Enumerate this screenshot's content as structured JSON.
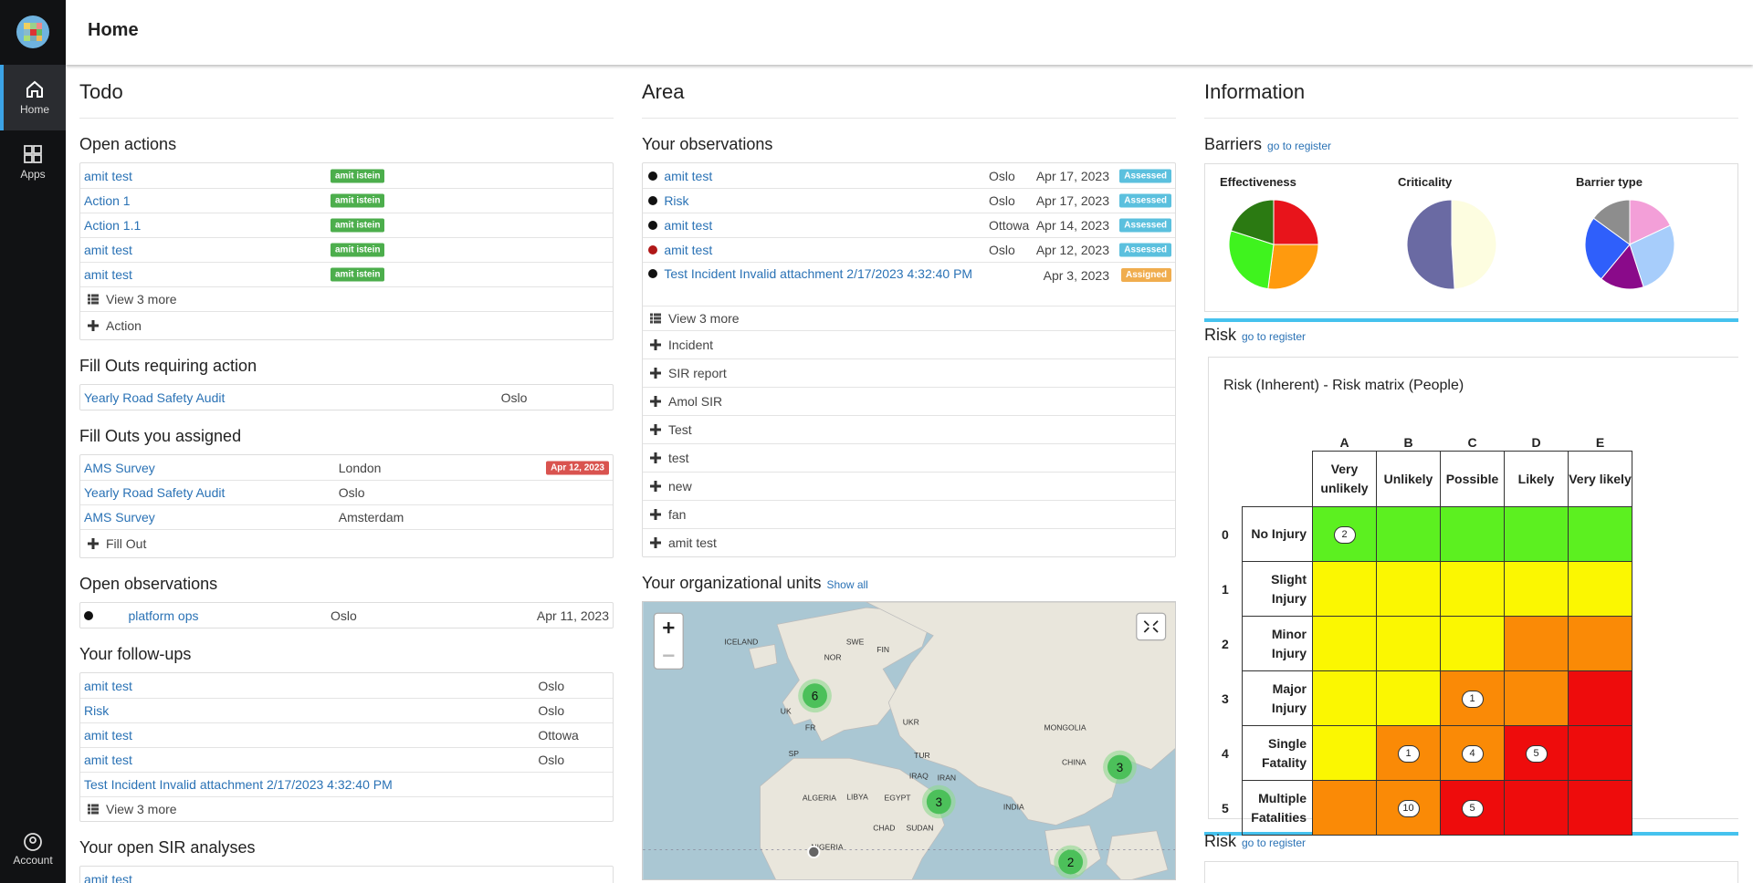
{
  "header": {
    "title": "Home"
  },
  "sidebar": {
    "items": [
      "Home",
      "Apps"
    ],
    "active": 0,
    "account": "Account"
  },
  "todo": {
    "title": "Todo",
    "open_actions": {
      "title": "Open actions",
      "rows": [
        [
          "amit test",
          "amit istein"
        ],
        [
          "Action 1",
          "amit istein"
        ],
        [
          "Action 1.1",
          "amit istein"
        ],
        [
          "amit test",
          "amit istein"
        ],
        [
          "amit test",
          "amit istein"
        ]
      ],
      "more": "View 3 more",
      "add": "Action"
    },
    "fill_outs_action": {
      "title": "Fill Outs requiring action",
      "rows": [
        [
          "Yearly Road Safety Audit",
          "Oslo"
        ]
      ]
    },
    "fill_outs_assigned": {
      "title": "Fill Outs you assigned",
      "rows": [
        [
          "AMS Survey",
          "London",
          "Apr 12, 2023"
        ],
        [
          "Yearly Road Safety Audit",
          "Oslo"
        ],
        [
          "AMS Survey",
          "Amsterdam"
        ]
      ],
      "add": "Fill Out"
    },
    "open_observations": {
      "title": "Open observations",
      "rows": [
        [
          "platform ops",
          "Oslo",
          "Apr 11, 2023"
        ]
      ]
    },
    "follow_ups": {
      "title": "Your follow-ups",
      "rows": [
        [
          "amit test",
          "Oslo"
        ],
        [
          "Risk",
          "Oslo"
        ],
        [
          "amit test",
          "Ottowa"
        ],
        [
          "amit test",
          "Oslo"
        ],
        [
          "Test Incident Invalid attachment 2/17/2023 4:32:40 PM"
        ]
      ],
      "more": "View 3 more"
    },
    "sir": {
      "title": "Your open SIR analyses",
      "rows": [
        [
          "amit test"
        ]
      ]
    }
  },
  "area": {
    "title": "Area",
    "observations": {
      "title": "Your observations",
      "rows": [
        {
          "name": "amit test",
          "place": "Oslo",
          "date": "Apr 17, 2023",
          "status": "Assessed",
          "dot": "#111111"
        },
        {
          "name": "Risk",
          "place": "Oslo",
          "date": "Apr 17, 2023",
          "status": "Assessed",
          "dot": "#111111"
        },
        {
          "name": "amit test",
          "place": "Ottowa",
          "date": "Apr 14, 2023",
          "status": "Assessed",
          "dot": "#111111"
        },
        {
          "name": "amit test",
          "place": "Oslo",
          "date": "Apr 12, 2023",
          "status": "Assessed",
          "dot": "#b01818"
        },
        {
          "name": "Test Incident Invalid attachment 2/17/2023 4:32:40 PM",
          "date": "Apr 3, 2023",
          "status": "Assigned",
          "dot": "#111111"
        }
      ],
      "more": "View 3 more",
      "add": [
        "Incident",
        "SIR report",
        "Amol SIR",
        "Test",
        "test",
        "new",
        "fan",
        "amit test"
      ]
    },
    "org_units": {
      "title": "Your organizational units",
      "link": "Show all",
      "clusters": [
        6,
        3,
        3,
        2
      ],
      "labels": [
        "ICELAND",
        "SWE",
        "NOR",
        "FIN",
        "UK",
        "FR",
        "SP",
        "UKR",
        "TUR",
        "IRAQ",
        "IRAN",
        "ALGERIA",
        "LIBYA",
        "EGYPT",
        "CHAD",
        "SUDAN",
        "NIGERIA",
        "INDIA",
        "CHINA",
        "MONGOLIA"
      ]
    }
  },
  "information": {
    "title": "Information",
    "barriers": {
      "title": "Barriers",
      "link": "go to register",
      "charts": [
        {
          "type": "pie",
          "title": "Effectiveness",
          "values": [
            25,
            27,
            28,
            20
          ],
          "colors": [
            "#e8141b",
            "#ff9a0e",
            "#3ff31e",
            "#2b7a12"
          ]
        },
        {
          "type": "pie",
          "title": "Criticality",
          "values": [
            49,
            51
          ],
          "colors": [
            "#fdfde0",
            "#6a6aa3"
          ]
        },
        {
          "type": "pie",
          "title": "Barrier type",
          "values": [
            18,
            27,
            16,
            24,
            15
          ],
          "colors": [
            "#f39fd8",
            "#a7cdfb",
            "#8a0a8a",
            "#2f5ffb",
            "#8d8d8d"
          ]
        }
      ]
    },
    "risk": {
      "title": "Risk",
      "link": "go to register",
      "matrix_title": "Risk (Inherent) - Risk matrix (People)",
      "columns": [
        {
          "letter": "A",
          "label": "Very unlikely"
        },
        {
          "letter": "B",
          "label": "Unlikely"
        },
        {
          "letter": "C",
          "label": "Possible"
        },
        {
          "letter": "D",
          "label": "Likely"
        },
        {
          "letter": "E",
          "label": "Very likely"
        }
      ],
      "rows": [
        {
          "index": 0,
          "label": "No Injury",
          "colors": [
            "#5cf020",
            "#5cf020",
            "#5cf020",
            "#5cf020",
            "#5cf020"
          ],
          "counts": [
            2,
            null,
            null,
            null,
            null
          ]
        },
        {
          "index": 1,
          "label": "Slight Injury",
          "colors": [
            "#fbf701",
            "#fbf701",
            "#fbf701",
            "#fbf701",
            "#fbf701"
          ],
          "counts": [
            null,
            null,
            null,
            null,
            null
          ]
        },
        {
          "index": 2,
          "label": "Minor Injury",
          "colors": [
            "#fbf701",
            "#fbf701",
            "#fbf701",
            "#fa8a06",
            "#fa8a06"
          ],
          "counts": [
            null,
            null,
            null,
            null,
            null
          ]
        },
        {
          "index": 3,
          "label": "Major Injury",
          "colors": [
            "#fbf701",
            "#fbf701",
            "#fa8a06",
            "#fa8a06",
            "#ee0c0c"
          ],
          "counts": [
            null,
            null,
            1,
            null,
            null
          ]
        },
        {
          "index": 4,
          "label": "Single Fatality",
          "colors": [
            "#fbf701",
            "#fa8a06",
            "#fa8a06",
            "#ee0c0c",
            "#ee0c0c"
          ],
          "counts": [
            null,
            1,
            4,
            5,
            null
          ]
        },
        {
          "index": 5,
          "label": "Multiple Fatalities",
          "colors": [
            "#fa8a06",
            "#fa8a06",
            "#ee0c0c",
            "#ee0c0c",
            "#ee0c0c"
          ],
          "counts": [
            null,
            10,
            5,
            null,
            null
          ]
        }
      ]
    },
    "risk2": {
      "title": "Risk",
      "link": "go to register"
    }
  }
}
